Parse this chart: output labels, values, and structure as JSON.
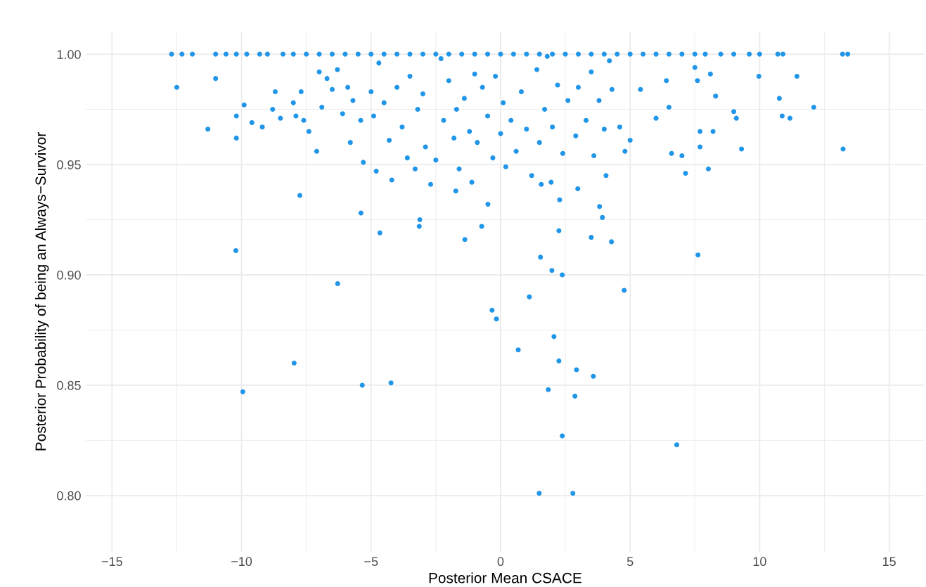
{
  "chart_data": {
    "type": "scatter",
    "xlabel": "Posterior Mean CSACE",
    "ylabel": "Posterior Probability of being an Always−Survivor",
    "xlim": [
      -16.0,
      16.35
    ],
    "ylim": [
      0.7745,
      1.0102
    ],
    "xticks": [
      {
        "value": -15,
        "label": "−15"
      },
      {
        "value": -12.5,
        "label": null
      },
      {
        "value": -10,
        "label": "−10"
      },
      {
        "value": -7.5,
        "label": null
      },
      {
        "value": -5,
        "label": "−5"
      },
      {
        "value": -2.5,
        "label": null
      },
      0,
      {
        "value": 2.5,
        "label": null
      },
      5,
      {
        "value": 7.5,
        "label": null
      },
      10,
      {
        "value": 12.5,
        "label": null
      },
      15
    ],
    "yticks": [
      {
        "value": 0.8,
        "label": "0.80"
      },
      {
        "value": 0.825,
        "label": null
      },
      {
        "value": 0.85,
        "label": "0.85"
      },
      {
        "value": 0.875,
        "label": null
      },
      {
        "value": 0.9,
        "label": "0.90"
      },
      {
        "value": 0.925,
        "label": null
      },
      {
        "value": 0.95,
        "label": "0.95"
      },
      {
        "value": 0.975,
        "label": null
      },
      {
        "value": 1.0,
        "label": "1.00"
      }
    ],
    "grid": true,
    "marker": "circle",
    "series": [
      {
        "color": "#2196e8",
        "x": [
          -12.7,
          -12.3,
          -11.9,
          -11.0,
          -10.6,
          -10.2,
          -9.8,
          -9.3,
          -9.0,
          -8.4,
          -8.0,
          -7.5,
          -7.0,
          -6.5,
          -6.0,
          -5.5,
          -5.0,
          -4.5,
          -4.0,
          -3.5,
          -3.0,
          -2.5,
          -2.0,
          -1.5,
          -1.0,
          -0.5,
          0,
          0.5,
          1.0,
          1.5,
          2.0,
          2.5,
          3.0,
          3.5,
          4.0,
          4.5,
          5.0,
          5.5,
          6.0,
          6.5,
          7.0,
          7.5,
          7.9,
          8.5,
          9.0,
          9.6,
          10.0,
          10.7,
          10.9,
          13.2,
          13.4,
          -12.5,
          -11.3,
          -11.0,
          -10.2,
          -10.2,
          -9.9,
          -9.6,
          -9.2,
          -8.8,
          -8.7,
          -8.5,
          -8.0,
          -7.9,
          -7.7,
          -7.6,
          -7.4,
          -7.1,
          -7.0,
          -6.9,
          -6.7,
          -6.5,
          -6.3,
          -6.1,
          -5.9,
          -5.8,
          -5.7,
          -5.4,
          -5.3,
          -5.0,
          -4.9,
          -4.8,
          -4.7,
          -4.5,
          -4.3,
          -4.2,
          -4.0,
          -3.8,
          -3.6,
          -3.5,
          -3.3,
          -3.2,
          -3.0,
          -2.9,
          -2.7,
          -2.5,
          -2.3,
          -2.2,
          -2.0,
          -1.8,
          -1.7,
          -1.6,
          -1.4,
          -1.2,
          -1.0,
          -0.9,
          -0.7,
          -0.5,
          -0.3,
          -0.2,
          0,
          0.1,
          0.2,
          0.4,
          0.6,
          0.8,
          1.0,
          1.2,
          1.4,
          1.5,
          1.7,
          1.8,
          2.0,
          2.2,
          2.4,
          2.6,
          2.9,
          3.0,
          3.3,
          3.5,
          3.6,
          3.8,
          4.0,
          4.2,
          4.3,
          4.6,
          4.8,
          5.0,
          5.4,
          6.0,
          6.4,
          6.5,
          6.6,
          7.0,
          7.5,
          7.6,
          7.7,
          7.7,
          8.1,
          8.2,
          8.3,
          9.0,
          9.1,
          9.3,
          9.97,
          10.76,
          10.87,
          11.17,
          11.44,
          12.09,
          13.22,
          -5.39,
          -10.22,
          -7.75,
          -6.29,
          -7.97,
          -9.95,
          -5.34,
          -4.23,
          -0.33,
          -0.16,
          -0.49,
          -0.73,
          1.11,
          0.68,
          1.54,
          1.98,
          2.38,
          2.06,
          2.25,
          1.84,
          2.93,
          2.87,
          2.38,
          1.49,
          2.79,
          3.58,
          4.77,
          7.62,
          6.8,
          3.5,
          4.28,
          2.25,
          -3.14,
          -4.66,
          -1.38,
          -3.12,
          -1.73,
          -1.11,
          1.57,
          1.95,
          2.28,
          2.98,
          3.82,
          3.93,
          4.07,
          7.14,
          8.02
        ],
        "values": [
          1,
          1,
          1,
          1,
          1,
          1,
          1,
          1,
          1,
          1,
          1,
          1,
          1,
          1,
          1,
          1,
          1,
          1,
          1,
          1,
          1,
          1,
          1,
          1,
          1,
          1,
          1,
          1,
          1,
          1,
          1,
          1,
          1,
          1,
          1,
          1,
          1,
          1,
          1,
          1,
          1,
          1,
          1,
          1,
          1,
          1,
          1,
          1,
          1,
          1,
          1,
          0.985,
          0.966,
          0.989,
          0.972,
          0.962,
          0.977,
          0.969,
          0.967,
          0.975,
          0.983,
          0.971,
          0.978,
          0.972,
          0.983,
          0.97,
          0.965,
          0.956,
          0.992,
          0.976,
          0.989,
          0.984,
          0.993,
          0.973,
          0.985,
          0.96,
          0.979,
          0.97,
          0.951,
          0.983,
          0.972,
          0.947,
          0.996,
          0.978,
          0.961,
          0.943,
          0.985,
          0.967,
          0.953,
          0.99,
          0.948,
          0.975,
          0.982,
          0.958,
          0.941,
          0.952,
          0.998,
          0.97,
          0.988,
          0.962,
          0.975,
          0.948,
          0.98,
          0.965,
          0.991,
          0.96,
          0.985,
          0.972,
          0.953,
          0.99,
          0.964,
          0.978,
          0.949,
          0.97,
          0.956,
          0.983,
          0.966,
          0.945,
          0.993,
          0.96,
          0.975,
          0.999,
          0.967,
          0.986,
          0.955,
          0.979,
          0.963,
          0.985,
          0.97,
          0.992,
          0.954,
          0.979,
          0.966,
          0.997,
          0.984,
          0.967,
          0.956,
          0.961,
          0.984,
          0.971,
          0.988,
          0.976,
          0.955,
          0.954,
          0.994,
          0.988,
          0.965,
          0.958,
          0.991,
          0.965,
          0.981,
          0.974,
          0.971,
          0.957,
          0.99,
          0.98,
          0.972,
          0.971,
          0.99,
          0.976,
          0.957,
          0.928,
          0.911,
          0.936,
          0.896,
          0.86,
          0.847,
          0.85,
          0.851,
          0.884,
          0.88,
          0.932,
          0.922,
          0.89,
          0.866,
          0.908,
          0.902,
          0.9,
          0.872,
          0.861,
          0.848,
          0.857,
          0.845,
          0.827,
          0.801,
          0.801,
          0.854,
          0.893,
          0.909,
          0.823,
          0.917,
          0.915,
          0.92,
          0.922,
          0.919,
          0.916,
          0.925,
          0.938,
          0.942,
          0.941,
          0.942,
          0.934,
          0.939,
          0.931,
          0.926,
          0.945,
          0.946,
          0.948
        ]
      }
    ]
  }
}
